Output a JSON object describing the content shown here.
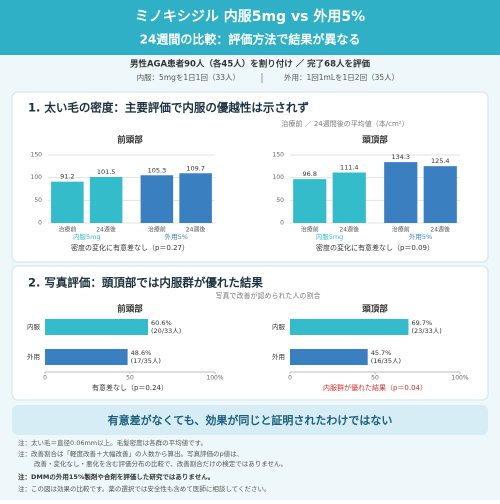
{
  "header": {
    "title": "ミノキシジル 内服5mg vs 外用5%",
    "subtitle": "24週間の比較：評価方法で結果が異なる",
    "design": "男性AGA患者90人（各45人）を割り付け ／ 完了68人を評価",
    "oral": "内服：5mgを1日1回（33人）",
    "topical": "外用：1回1mLを1日2回（35人）"
  },
  "sections": [
    {
      "heading": "1. 太い毛の密度：主要評価で内服の優越性は示されず",
      "caption": "治療前 ／ 24週間後の平均値（本/cm²）"
    },
    {
      "heading": "2. 写真評価：頭頂部では内服群が優れた結果",
      "caption": "写真で改善が認められた人の割合"
    }
  ],
  "chart_data": [
    {
      "type": "bar",
      "title": "前頭部",
      "categories": [
        "治療前",
        "24週後",
        "治療前",
        "24週後"
      ],
      "series": [
        {
          "name": "内服5mg",
          "color": "#35bccb",
          "values": [
            91.2,
            101.5,
            null,
            null
          ]
        },
        {
          "name": "外用5%",
          "color": "#3a7fc0",
          "values": [
            null,
            null,
            105.3,
            109.7
          ]
        }
      ],
      "ylim": [
        0,
        150
      ],
      "yticks": [
        0,
        50,
        100,
        150
      ],
      "grid": true,
      "note": "密度の変化に有意差なし（p＝0.27）",
      "note_color": "#333333"
    },
    {
      "type": "bar",
      "title": "頭頂部",
      "categories": [
        "治療前",
        "24週後",
        "治療前",
        "24週後"
      ],
      "series": [
        {
          "name": "内服5mg",
          "color": "#35bccb",
          "values": [
            96.8,
            111.4,
            null,
            null
          ]
        },
        {
          "name": "外用5%",
          "color": "#3a7fc0",
          "values": [
            null,
            null,
            134.3,
            125.4
          ]
        }
      ],
      "ylim": [
        0,
        150
      ],
      "yticks": [
        0,
        50,
        100,
        150
      ],
      "grid": true,
      "note": "密度の変化に有意差なし（p＝0.09）",
      "note_color": "#333333"
    },
    {
      "type": "hbar",
      "title": "前頭部",
      "categories": [
        "内服",
        "外用"
      ],
      "colors": [
        "#35bccb",
        "#3a7fc0"
      ],
      "values": [
        60.6,
        48.6
      ],
      "value_labels": [
        "60.6%",
        "48.6%"
      ],
      "counts": [
        "(20/33人)",
        "(17/35人)"
      ],
      "xlim": [
        0,
        100
      ],
      "xticks": [
        0,
        50,
        {
          "value": 100,
          "label": "100%"
        }
      ],
      "note": "有意差なし（p＝0.24）",
      "note_color": "#333333"
    },
    {
      "type": "hbar",
      "title": "頭頂部",
      "categories": [
        "内服",
        "外用"
      ],
      "colors": [
        "#35bccb",
        "#3a7fc0"
      ],
      "values": [
        69.7,
        45.7
      ],
      "value_labels": [
        "69.7%",
        "45.7%"
      ],
      "counts": [
        "(23/33人)",
        "(16/35人)"
      ],
      "xlim": [
        0,
        100
      ],
      "xticks": [
        0,
        50,
        {
          "value": 100,
          "label": "100%"
        }
      ],
      "note": "内服群が優れた結果（p＝0.04）",
      "note_color": "#d9302c"
    }
  ],
  "conclusion": "有意差がなくても、効果が同じと証明されたわけではない",
  "notes": [
    "注：太い毛＝直径0.06mm以上。毛髪密度は各群の平均値です。",
    "注：改善割合は「軽度改善＋大幅改善」の人数から算出。写真評価のp値は、",
    "改善・変化なし・悪化を含む評価分布の比較で、改善割合だけの検定ではありません。",
    "注：DMMの外用15%製剤や合剤を評価した研究ではありません。",
    "注：この図は効果の比較です。薬の選択では安全性も含めて医師に相談してください。"
  ]
}
